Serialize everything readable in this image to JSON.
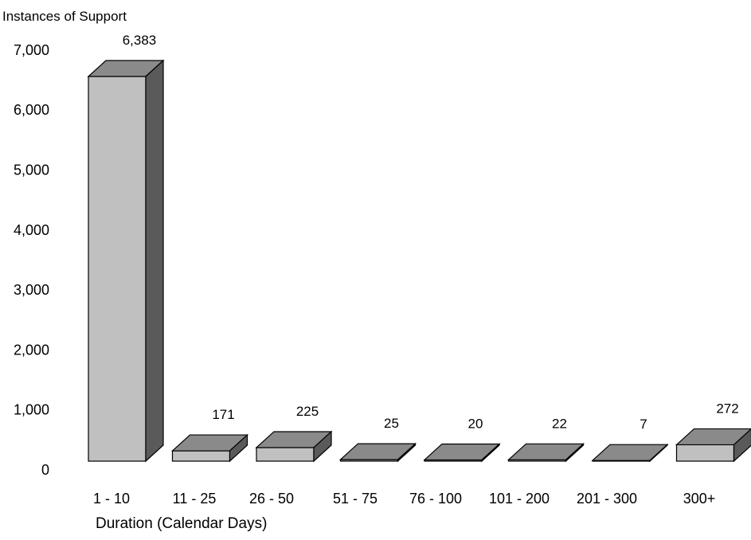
{
  "chart_data": {
    "type": "bar",
    "style": "3d",
    "ylabel": "Instances of Support",
    "xlabel": "Duration (Calendar Days)",
    "categories": [
      "1 - 10",
      "11 - 25",
      "26 - 50",
      "51 - 75",
      "76 - 100",
      "101 - 200",
      "201 - 300",
      "300+"
    ],
    "values": [
      6383,
      171,
      225,
      25,
      20,
      22,
      7,
      272
    ],
    "data_labels": [
      "6,383",
      "171",
      "225",
      "25",
      "20",
      "22",
      "7",
      "272"
    ],
    "yticks": [
      "0",
      "1,000",
      "2,000",
      "3,000",
      "4,000",
      "5,000",
      "6,000",
      "7,000"
    ],
    "ylim": [
      0,
      7000
    ],
    "grid": false,
    "legend": "none",
    "colors": {
      "front": "#c0c0c0",
      "top": "#8a8a8a",
      "side": "#5a5a5a",
      "stroke": "#000000"
    }
  }
}
